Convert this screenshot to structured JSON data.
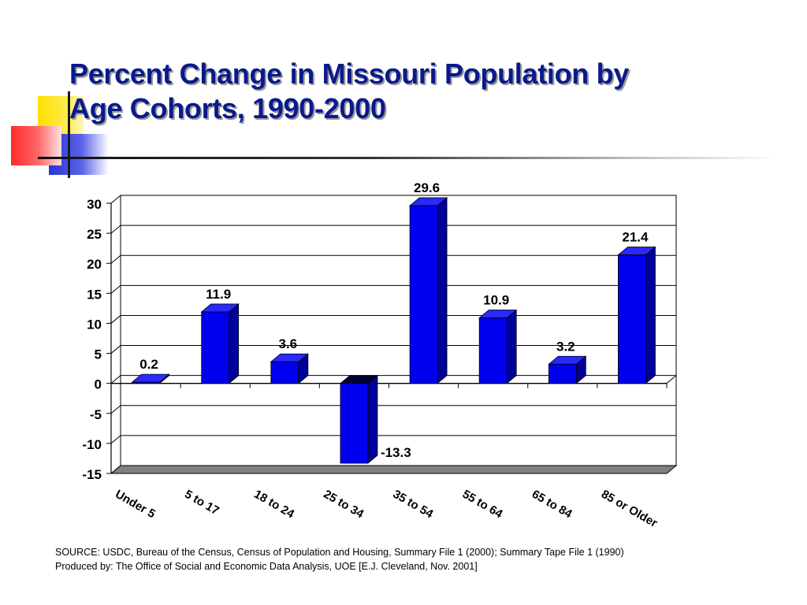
{
  "slide": {
    "title_line1": "Percent Change in Missouri Population by",
    "title_line2": "Age Cohorts, 1990-2000",
    "source_line1": "SOURCE:  USDC, Bureau of the Census, Census of Population and Housing, Summary File 1 (2000); Summary Tape File 1 (1990)",
    "source_line2": "Produced by:  The Office of Social and Economic Data Analysis, UOE [E.J. Cleveland, Nov. 2001]"
  },
  "colors": {
    "bar_front": "#0000ee",
    "bar_top": "#2a2aff",
    "bar_side": "#00009a",
    "title": "#0a1a8c"
  },
  "chart_data": {
    "type": "bar",
    "style": "3d",
    "title": "",
    "xlabel": "",
    "ylabel": "",
    "categories": [
      "Under 5",
      "5 to 17",
      "18 to 24",
      "25 to 34",
      "35 to 54",
      "55 to 64",
      "65 to 84",
      "85 or Older"
    ],
    "values": [
      0.2,
      11.9,
      3.6,
      -13.3,
      29.6,
      10.9,
      3.2,
      21.4
    ],
    "data_labels": [
      "0.2",
      "11.9",
      "3.6",
      "-13.3",
      "29.6",
      "10.9",
      "3.2",
      "21.4"
    ],
    "ylim": [
      -15,
      30
    ],
    "yticks": [
      30,
      25,
      20,
      15,
      10,
      5,
      0,
      -5,
      -10,
      -15
    ],
    "grid": true,
    "legend": "none"
  }
}
